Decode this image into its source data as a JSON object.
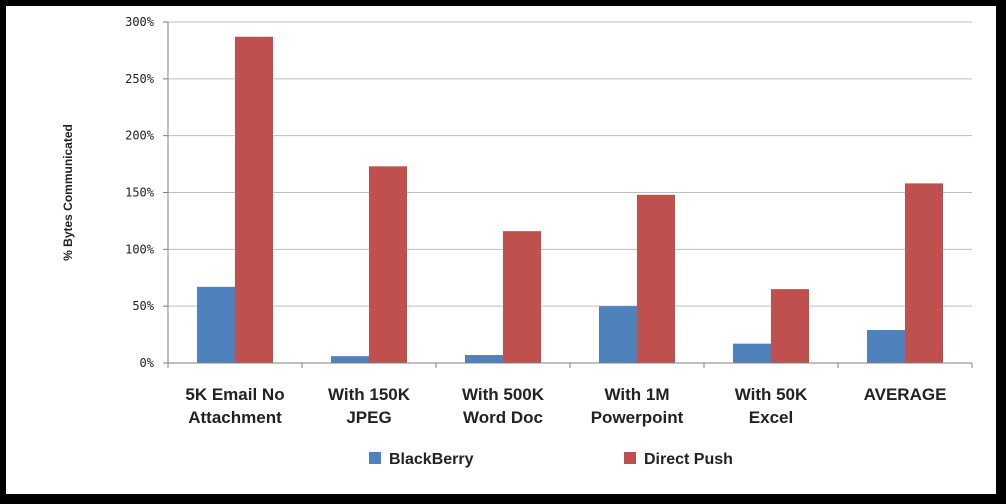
{
  "chart_data": {
    "type": "bar",
    "ylabel": "% Bytes Communicated",
    "xlabel": "",
    "ylim": [
      0,
      300
    ],
    "yticks": [
      0,
      50,
      100,
      150,
      200,
      250,
      300
    ],
    "ytick_labels": [
      "0%",
      "50%",
      "100%",
      "150%",
      "200%",
      "250%",
      "300%"
    ],
    "grid": true,
    "legend_position": "bottom",
    "categories": [
      [
        "5K Email No",
        "Attachment"
      ],
      [
        "With 150K",
        "JPEG"
      ],
      [
        "With 500K",
        "Word Doc"
      ],
      [
        "With 1M",
        "Powerpoint"
      ],
      [
        "With 50K",
        "Excel"
      ],
      [
        "AVERAGE"
      ]
    ],
    "series": [
      {
        "name": "BlackBerry",
        "color": "#4f81bd",
        "values": [
          67,
          6,
          7,
          50,
          17,
          29
        ]
      },
      {
        "name": "Direct Push",
        "color": "#c0504d",
        "values": [
          287,
          173,
          116,
          148,
          65,
          158
        ]
      }
    ]
  }
}
